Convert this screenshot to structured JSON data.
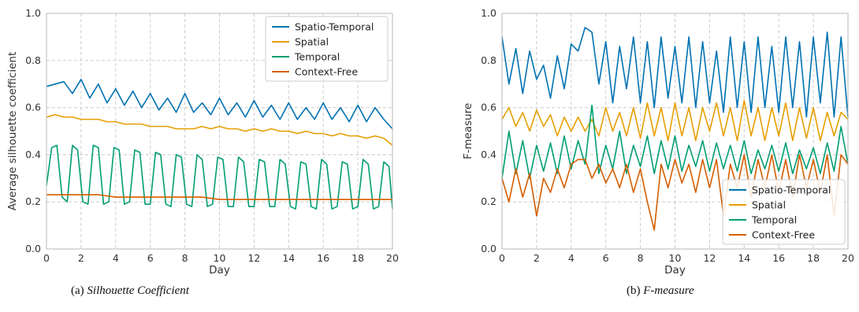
{
  "colors": {
    "spatio_temporal": "#0072b2",
    "spatial": "#e69f00",
    "temporal": "#009e73",
    "context_free": "#d55e00"
  },
  "captions": {
    "a": {
      "prefix": "(a) ",
      "title": "Silhouette Coefficient"
    },
    "b": {
      "prefix": "(b) ",
      "title": "F-measure"
    }
  },
  "chart_data": [
    {
      "type": "line",
      "title": "",
      "xlabel": "Day",
      "ylabel": "Average silhouette coefficient",
      "xlim": [
        0,
        20
      ],
      "ylim": [
        0,
        1.0
      ],
      "xticks": [
        "0",
        "2",
        "4",
        "6",
        "8",
        "10",
        "12",
        "14",
        "16",
        "18",
        "20"
      ],
      "yticks": [
        "0.0",
        "0.2",
        "0.4",
        "0.6",
        "0.8",
        "1.0"
      ],
      "grid": true,
      "legend_position": "top-right",
      "series": [
        {
          "name": "Spatio-Temporal",
          "color_key": "spatio_temporal",
          "x": [
            0,
            0.5,
            1,
            1.5,
            2,
            2.5,
            3,
            3.5,
            4,
            4.5,
            5,
            5.5,
            6,
            6.5,
            7,
            7.5,
            8,
            8.5,
            9,
            9.5,
            10,
            10.5,
            11,
            11.5,
            12,
            12.5,
            13,
            13.5,
            14,
            14.5,
            15,
            15.5,
            16,
            16.5,
            17,
            17.5,
            18,
            18.5,
            19,
            19.5,
            20
          ],
          "y": [
            0.69,
            0.7,
            0.71,
            0.66,
            0.72,
            0.64,
            0.7,
            0.62,
            0.68,
            0.61,
            0.67,
            0.6,
            0.66,
            0.59,
            0.64,
            0.58,
            0.66,
            0.58,
            0.62,
            0.57,
            0.64,
            0.57,
            0.62,
            0.56,
            0.63,
            0.56,
            0.61,
            0.55,
            0.62,
            0.55,
            0.6,
            0.55,
            0.62,
            0.55,
            0.6,
            0.54,
            0.61,
            0.54,
            0.6,
            0.55,
            0.51
          ]
        },
        {
          "name": "Spatial",
          "color_key": "spatial",
          "x": [
            0,
            0.5,
            1,
            1.5,
            2,
            2.5,
            3,
            3.5,
            4,
            4.5,
            5,
            5.5,
            6,
            6.5,
            7,
            7.5,
            8,
            8.5,
            9,
            9.5,
            10,
            10.5,
            11,
            11.5,
            12,
            12.5,
            13,
            13.5,
            14,
            14.5,
            15,
            15.5,
            16,
            16.5,
            17,
            17.5,
            18,
            18.5,
            19,
            19.5,
            20
          ],
          "y": [
            0.56,
            0.57,
            0.56,
            0.56,
            0.55,
            0.55,
            0.55,
            0.54,
            0.54,
            0.53,
            0.53,
            0.53,
            0.52,
            0.52,
            0.52,
            0.51,
            0.51,
            0.51,
            0.52,
            0.51,
            0.52,
            0.51,
            0.51,
            0.5,
            0.51,
            0.5,
            0.51,
            0.5,
            0.5,
            0.49,
            0.5,
            0.49,
            0.49,
            0.48,
            0.49,
            0.48,
            0.48,
            0.47,
            0.48,
            0.47,
            0.44
          ]
        },
        {
          "name": "Temporal",
          "color_key": "temporal",
          "x": [
            0,
            0.3,
            0.6,
            0.9,
            1.2,
            1.5,
            1.8,
            2.1,
            2.4,
            2.7,
            3,
            3.3,
            3.6,
            3.9,
            4.2,
            4.5,
            4.8,
            5.1,
            5.4,
            5.7,
            6,
            6.3,
            6.6,
            6.9,
            7.2,
            7.5,
            7.8,
            8.1,
            8.4,
            8.7,
            9,
            9.3,
            9.6,
            9.9,
            10.2,
            10.5,
            10.8,
            11.1,
            11.4,
            11.7,
            12,
            12.3,
            12.6,
            12.9,
            13.2,
            13.5,
            13.8,
            14.1,
            14.4,
            14.7,
            15,
            15.3,
            15.6,
            15.9,
            16.2,
            16.5,
            16.8,
            17.1,
            17.4,
            17.7,
            18,
            18.3,
            18.6,
            18.9,
            19.2,
            19.5,
            19.8,
            20
          ],
          "y": [
            0.27,
            0.43,
            0.44,
            0.22,
            0.2,
            0.44,
            0.42,
            0.2,
            0.19,
            0.44,
            0.43,
            0.19,
            0.2,
            0.43,
            0.42,
            0.19,
            0.2,
            0.42,
            0.41,
            0.19,
            0.19,
            0.41,
            0.4,
            0.19,
            0.18,
            0.4,
            0.39,
            0.19,
            0.18,
            0.4,
            0.38,
            0.18,
            0.19,
            0.39,
            0.38,
            0.18,
            0.18,
            0.39,
            0.37,
            0.18,
            0.18,
            0.38,
            0.37,
            0.18,
            0.18,
            0.38,
            0.36,
            0.18,
            0.17,
            0.37,
            0.36,
            0.18,
            0.17,
            0.38,
            0.36,
            0.17,
            0.18,
            0.37,
            0.36,
            0.17,
            0.18,
            0.38,
            0.36,
            0.17,
            0.18,
            0.37,
            0.35,
            0.17
          ]
        },
        {
          "name": "Context-Free",
          "color_key": "context_free",
          "x": [
            0,
            1,
            2,
            3,
            4,
            5,
            6,
            7,
            8,
            9,
            10,
            11,
            12,
            13,
            14,
            15,
            16,
            17,
            18,
            19,
            20
          ],
          "y": [
            0.23,
            0.23,
            0.23,
            0.23,
            0.22,
            0.22,
            0.22,
            0.22,
            0.22,
            0.22,
            0.21,
            0.21,
            0.21,
            0.21,
            0.21,
            0.21,
            0.21,
            0.21,
            0.21,
            0.21,
            0.21
          ]
        }
      ]
    },
    {
      "type": "line",
      "title": "",
      "xlabel": "Day",
      "ylabel": "F-measure",
      "xlim": [
        0,
        20
      ],
      "ylim": [
        0,
        1.0
      ],
      "xticks": [
        "0",
        "2",
        "4",
        "6",
        "8",
        "10",
        "12",
        "14",
        "16",
        "18",
        "20"
      ],
      "yticks": [
        "0.0",
        "0.2",
        "0.4",
        "0.6",
        "0.8",
        "1.0"
      ],
      "grid": true,
      "legend_position": "bottom-right",
      "series": [
        {
          "name": "Spatio-Temporal",
          "color_key": "spatio_temporal",
          "x": [
            0,
            0.4,
            0.8,
            1.2,
            1.6,
            2,
            2.4,
            2.8,
            3.2,
            3.6,
            4,
            4.4,
            4.8,
            5.2,
            5.6,
            6,
            6.4,
            6.8,
            7.2,
            7.6,
            8,
            8.4,
            8.8,
            9.2,
            9.6,
            10,
            10.4,
            10.8,
            11.2,
            11.6,
            12,
            12.4,
            12.8,
            13.2,
            13.6,
            14,
            14.4,
            14.8,
            15.2,
            15.6,
            16,
            16.4,
            16.8,
            17.2,
            17.6,
            18,
            18.4,
            18.8,
            19.2,
            19.6,
            20
          ],
          "y": [
            0.9,
            0.7,
            0.85,
            0.66,
            0.84,
            0.72,
            0.78,
            0.64,
            0.82,
            0.68,
            0.87,
            0.84,
            0.94,
            0.92,
            0.7,
            0.88,
            0.62,
            0.86,
            0.68,
            0.9,
            0.62,
            0.88,
            0.6,
            0.9,
            0.64,
            0.86,
            0.62,
            0.9,
            0.6,
            0.88,
            0.62,
            0.84,
            0.58,
            0.9,
            0.6,
            0.88,
            0.58,
            0.9,
            0.6,
            0.86,
            0.58,
            0.9,
            0.6,
            0.88,
            0.56,
            0.9,
            0.62,
            0.92,
            0.56,
            0.9,
            0.56
          ]
        },
        {
          "name": "Spatial",
          "color_key": "spatial",
          "x": [
            0,
            0.4,
            0.8,
            1.2,
            1.6,
            2,
            2.4,
            2.8,
            3.2,
            3.6,
            4,
            4.4,
            4.8,
            5.2,
            5.6,
            6,
            6.4,
            6.8,
            7.2,
            7.6,
            8,
            8.4,
            8.8,
            9.2,
            9.6,
            10,
            10.4,
            10.8,
            11.2,
            11.6,
            12,
            12.4,
            12.8,
            13.2,
            13.6,
            14,
            14.4,
            14.8,
            15.2,
            15.6,
            16,
            16.4,
            16.8,
            17.2,
            17.6,
            18,
            18.4,
            18.8,
            19.2,
            19.6,
            20
          ],
          "y": [
            0.55,
            0.6,
            0.52,
            0.58,
            0.5,
            0.59,
            0.52,
            0.57,
            0.48,
            0.56,
            0.5,
            0.56,
            0.5,
            0.55,
            0.48,
            0.6,
            0.5,
            0.58,
            0.48,
            0.6,
            0.47,
            0.62,
            0.48,
            0.6,
            0.46,
            0.62,
            0.48,
            0.6,
            0.46,
            0.6,
            0.5,
            0.62,
            0.48,
            0.6,
            0.46,
            0.63,
            0.48,
            0.6,
            0.46,
            0.6,
            0.48,
            0.62,
            0.46,
            0.6,
            0.47,
            0.6,
            0.46,
            0.58,
            0.48,
            0.58,
            0.55
          ]
        },
        {
          "name": "Temporal",
          "color_key": "temporal",
          "x": [
            0,
            0.4,
            0.8,
            1.2,
            1.6,
            2,
            2.4,
            2.8,
            3.2,
            3.6,
            4,
            4.4,
            4.8,
            5.2,
            5.6,
            6,
            6.4,
            6.8,
            7.2,
            7.6,
            8,
            8.4,
            8.8,
            9.2,
            9.6,
            10,
            10.4,
            10.8,
            11.2,
            11.6,
            12,
            12.4,
            12.8,
            13.2,
            13.6,
            14,
            14.4,
            14.8,
            15.2,
            15.6,
            16,
            16.4,
            16.8,
            17.2,
            17.6,
            18,
            18.4,
            18.8,
            19.2,
            19.6,
            20
          ],
          "y": [
            0.3,
            0.5,
            0.32,
            0.46,
            0.3,
            0.44,
            0.33,
            0.45,
            0.32,
            0.48,
            0.34,
            0.46,
            0.36,
            0.61,
            0.32,
            0.44,
            0.34,
            0.5,
            0.32,
            0.44,
            0.35,
            0.48,
            0.32,
            0.46,
            0.34,
            0.48,
            0.33,
            0.44,
            0.35,
            0.46,
            0.33,
            0.45,
            0.34,
            0.44,
            0.33,
            0.46,
            0.32,
            0.42,
            0.34,
            0.44,
            0.33,
            0.45,
            0.32,
            0.42,
            0.34,
            0.43,
            0.32,
            0.45,
            0.33,
            0.52,
            0.36
          ]
        },
        {
          "name": "Context-Free",
          "color_key": "context_free",
          "x": [
            0,
            0.4,
            0.8,
            1.2,
            1.6,
            2,
            2.4,
            2.8,
            3.2,
            3.6,
            4,
            4.4,
            4.8,
            5.2,
            5.6,
            6,
            6.4,
            6.8,
            7.2,
            7.6,
            8,
            8.4,
            8.8,
            9.2,
            9.6,
            10,
            10.4,
            10.8,
            11.2,
            11.6,
            12,
            12.4,
            12.8,
            13.2,
            13.6,
            14,
            14.4,
            14.8,
            15.2,
            15.6,
            16,
            16.4,
            16.8,
            17.2,
            17.6,
            18,
            18.4,
            18.8,
            19.2,
            19.6,
            20
          ],
          "y": [
            0.3,
            0.2,
            0.34,
            0.22,
            0.32,
            0.14,
            0.3,
            0.24,
            0.34,
            0.26,
            0.36,
            0.38,
            0.38,
            0.3,
            0.36,
            0.28,
            0.34,
            0.26,
            0.36,
            0.24,
            0.34,
            0.2,
            0.08,
            0.36,
            0.26,
            0.38,
            0.28,
            0.36,
            0.24,
            0.38,
            0.26,
            0.38,
            0.14,
            0.36,
            0.26,
            0.4,
            0.22,
            0.38,
            0.26,
            0.4,
            0.24,
            0.38,
            0.22,
            0.4,
            0.26,
            0.38,
            0.24,
            0.4,
            0.14,
            0.4,
            0.36
          ]
        }
      ]
    }
  ]
}
